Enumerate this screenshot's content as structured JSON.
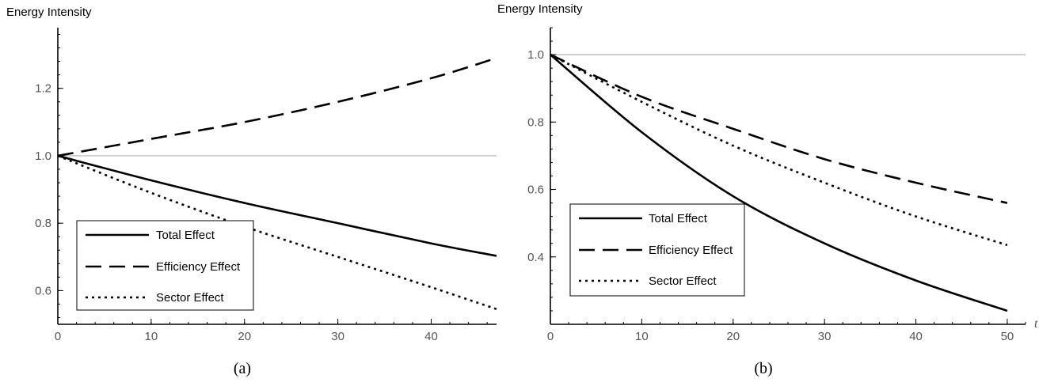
{
  "chart_data": [
    {
      "type": "line",
      "caption": "(a)",
      "ylabel": "Energy Intensity",
      "xlabel": "",
      "xlim": [
        0,
        47
      ],
      "ylim": [
        0.5,
        1.38
      ],
      "xticks": [
        0,
        10,
        20,
        30,
        40
      ],
      "yticks": [
        0.6,
        0.8,
        1.0,
        1.2
      ],
      "reference_line": 1.0,
      "legend": [
        "Total Effect",
        "Efficiency Effect",
        "Sector Effect"
      ],
      "legend_position": "bottom-center",
      "series": [
        {
          "name": "Total Effect",
          "style": "solid",
          "x": [
            0,
            10,
            20,
            30,
            40,
            47
          ],
          "y": [
            1.0,
            0.927,
            0.86,
            0.8,
            0.74,
            0.703
          ]
        },
        {
          "name": "Efficiency Effect",
          "style": "dashed",
          "x": [
            0,
            10,
            20,
            30,
            40,
            47
          ],
          "y": [
            1.0,
            1.05,
            1.1,
            1.16,
            1.23,
            1.29
          ]
        },
        {
          "name": "Sector Effect",
          "style": "dotted",
          "x": [
            0,
            10,
            20,
            30,
            40,
            47
          ],
          "y": [
            1.0,
            0.89,
            0.79,
            0.7,
            0.61,
            0.545
          ]
        }
      ]
    },
    {
      "type": "line",
      "caption": "(b)",
      "ylabel": "Energy Intensity",
      "xlabel": "t",
      "xlim": [
        0,
        52
      ],
      "ylim": [
        0.2,
        1.08
      ],
      "xticks": [
        0,
        10,
        20,
        30,
        40,
        50
      ],
      "yticks": [
        0.4,
        0.6,
        0.8,
        1.0
      ],
      "reference_line": 1.0,
      "legend": [
        "Total Effect",
        "Efficiency Effect",
        "Sector Effect"
      ],
      "legend_position": "bottom-left",
      "series": [
        {
          "name": "Total Effect",
          "style": "solid",
          "x": [
            0,
            10,
            20,
            30,
            40,
            50
          ],
          "y": [
            1.0,
            0.77,
            0.58,
            0.44,
            0.33,
            0.24
          ]
        },
        {
          "name": "Efficiency Effect",
          "style": "dashed",
          "x": [
            0,
            10,
            20,
            30,
            40,
            50
          ],
          "y": [
            1.0,
            0.875,
            0.78,
            0.69,
            0.62,
            0.56
          ]
        },
        {
          "name": "Sector Effect",
          "style": "dotted",
          "x": [
            0,
            10,
            20,
            30,
            40,
            50
          ],
          "y": [
            1.0,
            0.86,
            0.73,
            0.62,
            0.52,
            0.435
          ]
        }
      ]
    }
  ]
}
